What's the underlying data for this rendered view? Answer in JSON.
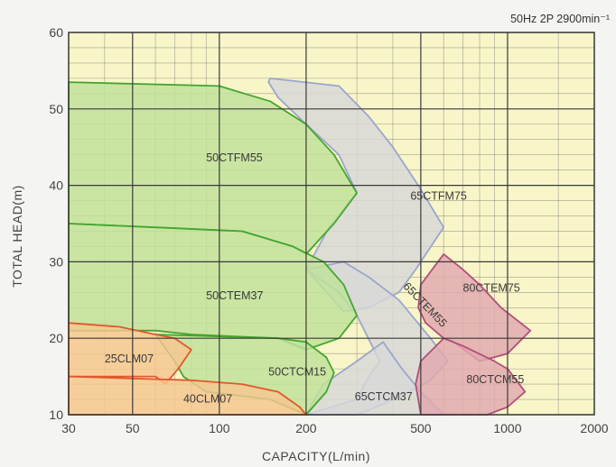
{
  "chart_data": {
    "type": "area",
    "note": "50Hz 2P 2900min⁻¹",
    "xlabel": "CAPACITY(L/min)",
    "ylabel": "TOTAL HEAD(m)",
    "x_scale": "log",
    "xlim": [
      30,
      2000
    ],
    "ylim": [
      10,
      60
    ],
    "x_ticks": [
      30,
      50,
      100,
      200,
      500,
      1000,
      2000
    ],
    "x_tick_labels": [
      "30",
      "50",
      "100",
      "200",
      "500",
      "1000",
      "2000"
    ],
    "y_ticks": [
      10,
      20,
      30,
      40,
      50,
      60
    ],
    "y_tick_labels": [
      "10",
      "20",
      "30",
      "40",
      "50",
      "60"
    ],
    "grid": true,
    "colors": {
      "plot_bg": "#f8f5c8",
      "grid_major": "#3a3a3a",
      "grid_minor": "#5a5a5a",
      "green_fill": "#bfe29a",
      "green_edge": "#44a531",
      "gray_fill": "#d8d8d8",
      "gray_edge": "#9aa6cc",
      "pink_fill": "#e0a8ae",
      "pink_edge": "#b04f7a",
      "orange_fill": "#f5c690",
      "orange_edge": "#e0592a"
    },
    "regions": [
      {
        "name": "65CTFM75",
        "color": "gray",
        "label_at": [
          460,
          38.5
        ],
        "label_rotate": 0,
        "boundary": [
          [
            148,
            53.5
          ],
          [
            150,
            54
          ],
          [
            260,
            53
          ],
          [
            330,
            49
          ],
          [
            400,
            45
          ],
          [
            490,
            40
          ],
          [
            600,
            34.5
          ],
          [
            480,
            29
          ],
          [
            420,
            26
          ],
          [
            330,
            24
          ],
          [
            270,
            23.5
          ],
          [
            200,
            29
          ],
          [
            240,
            34.5
          ],
          [
            300,
            39
          ],
          [
            260,
            44
          ],
          [
            200,
            48
          ],
          [
            160,
            51.5
          ]
        ]
      },
      {
        "name": "65CTEM55",
        "color": "gray",
        "label_at": [
          440,
          27
        ],
        "label_rotate": 46,
        "boundary": [
          [
            200,
            29
          ],
          [
            270,
            30
          ],
          [
            330,
            28
          ],
          [
            420,
            25
          ],
          [
            540,
            20
          ],
          [
            620,
            17
          ],
          [
            540,
            14.5
          ],
          [
            430,
            12.5
          ],
          [
            350,
            11
          ],
          [
            300,
            10
          ],
          [
            200,
            10
          ],
          [
            300,
            12
          ],
          [
            330,
            15
          ],
          [
            360,
            17
          ],
          [
            300,
            23
          ],
          [
            260,
            26
          ]
        ]
      },
      {
        "name": "65CTCM37",
        "color": "gray",
        "label_at": [
          295,
          12.3
        ],
        "label_rotate": 0,
        "boundary": [
          [
            200,
            10
          ],
          [
            600,
            10
          ],
          [
            500,
            13
          ],
          [
            430,
            16
          ],
          [
            370,
            19.5
          ],
          [
            300,
            17
          ],
          [
            230,
            14
          ],
          [
            210,
            11.5
          ]
        ]
      },
      {
        "name": "50CTFM55",
        "color": "green",
        "label_at": [
          90,
          43.5
        ],
        "label_rotate": 0,
        "boundary": [
          [
            30,
            53.5
          ],
          [
            100,
            53
          ],
          [
            150,
            51
          ],
          [
            200,
            48
          ],
          [
            250,
            44
          ],
          [
            300,
            39
          ],
          [
            250,
            35
          ],
          [
            200,
            31
          ],
          [
            180,
            32
          ],
          [
            120,
            34
          ],
          [
            60,
            34.5
          ],
          [
            30,
            35
          ]
        ]
      },
      {
        "name": "50CTEM37",
        "color": "green",
        "label_at": [
          90,
          25.5
        ],
        "label_rotate": 0,
        "boundary": [
          [
            30,
            35
          ],
          [
            120,
            34
          ],
          [
            180,
            32
          ],
          [
            230,
            30
          ],
          [
            270,
            27
          ],
          [
            300,
            23
          ],
          [
            260,
            20
          ],
          [
            200,
            18.5
          ],
          [
            160,
            20
          ],
          [
            80,
            20.5
          ],
          [
            60,
            21
          ],
          [
            30,
            21
          ]
        ]
      },
      {
        "name": "50CTCM15",
        "color": "green",
        "label_at": [
          148,
          15.5
        ],
        "label_rotate": 0,
        "boundary": [
          [
            60,
            20.5
          ],
          [
            160,
            20
          ],
          [
            200,
            19.5
          ],
          [
            235,
            17.5
          ],
          [
            250,
            15.5
          ],
          [
            235,
            13
          ],
          [
            200,
            10
          ],
          [
            150,
            12
          ],
          [
            90,
            13
          ],
          [
            75,
            15
          ],
          [
            70,
            17
          ]
        ]
      },
      {
        "name": "80CTEM75",
        "color": "pink",
        "label_at": [
          700,
          26.5
        ],
        "label_rotate": 0,
        "boundary": [
          [
            500,
            27
          ],
          [
            600,
            31
          ],
          [
            700,
            29
          ],
          [
            800,
            27
          ],
          [
            950,
            24
          ],
          [
            1200,
            21
          ],
          [
            1000,
            18
          ],
          [
            800,
            17
          ],
          [
            650,
            19.5
          ],
          [
            600,
            20
          ],
          [
            520,
            22
          ],
          [
            490,
            24
          ]
        ]
      },
      {
        "name": "80CTCM55",
        "color": "pink",
        "label_at": [
          720,
          14.5
        ],
        "label_rotate": 0,
        "boundary": [
          [
            600,
            20
          ],
          [
            700,
            19
          ],
          [
            900,
            17
          ],
          [
            1000,
            16
          ],
          [
            1150,
            13
          ],
          [
            1000,
            11
          ],
          [
            850,
            10
          ],
          [
            500,
            10
          ],
          [
            480,
            14
          ],
          [
            500,
            17
          ]
        ]
      },
      {
        "name": "25CLM07",
        "color": "orange",
        "label_at": [
          40,
          17.2
        ],
        "label_rotate": 0,
        "boundary": [
          [
            30,
            22
          ],
          [
            45,
            21.5
          ],
          [
            60,
            20.5
          ],
          [
            70,
            20
          ],
          [
            80,
            18.5
          ],
          [
            72,
            16
          ],
          [
            65,
            14
          ],
          [
            60,
            15
          ],
          [
            30,
            15
          ]
        ]
      },
      {
        "name": "40CLM07",
        "color": "orange",
        "label_at": [
          75,
          12
        ],
        "label_rotate": 0,
        "boundary": [
          [
            30,
            15
          ],
          [
            80,
            14.5
          ],
          [
            120,
            14
          ],
          [
            160,
            13
          ],
          [
            190,
            11
          ],
          [
            200,
            10
          ],
          [
            30,
            10
          ]
        ]
      }
    ]
  }
}
